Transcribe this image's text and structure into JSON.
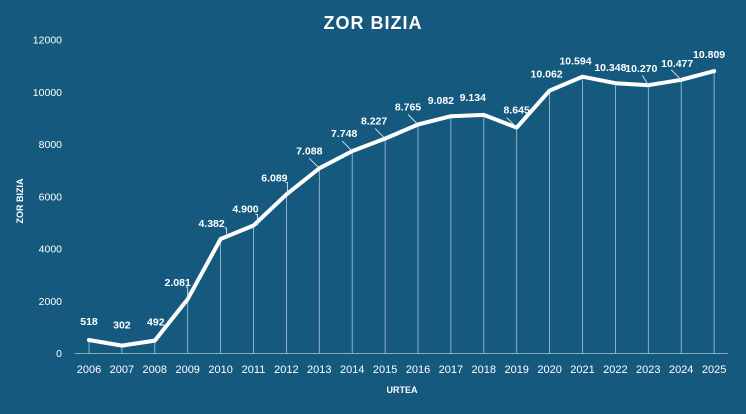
{
  "chart_data": {
    "type": "line",
    "title": "ZOR BIZIA",
    "xlabel": "URTEA",
    "ylabel": "ZOR BIZIA",
    "categories": [
      "2006",
      "2007",
      "2008",
      "2009",
      "2010",
      "2011",
      "2012",
      "2013",
      "2014",
      "2015",
      "2016",
      "2017",
      "2018",
      "2019",
      "2020",
      "2021",
      "2022",
      "2023",
      "2024",
      "2025"
    ],
    "values": [
      518,
      302,
      492,
      2081,
      4382,
      4900,
      6089,
      7088,
      7748,
      8227,
      8765,
      9082,
      9134,
      8645,
      10062,
      10594,
      10348,
      10270,
      10477,
      10809
    ],
    "value_labels": [
      "518",
      "302",
      "492",
      "2.081",
      "4.382",
      "4.900",
      "6.089",
      "7.088",
      "7.748",
      "8.227",
      "8.765",
      "9.082",
      "9.134",
      "8.645",
      "10.062",
      "10.594",
      "10.348",
      "10.270",
      "10.477",
      "10.809"
    ],
    "ylim": [
      0,
      12000
    ],
    "yticks": [
      "0",
      "2000",
      "4000",
      "6000",
      "8000",
      "10000",
      "12000"
    ],
    "ytick_values": [
      0,
      2000,
      4000,
      6000,
      8000,
      10000,
      12000
    ],
    "colors": {
      "background": "#155a7e",
      "line": "#ffffff",
      "text": "#ffffff",
      "droplines": "#a9c7d8"
    }
  }
}
